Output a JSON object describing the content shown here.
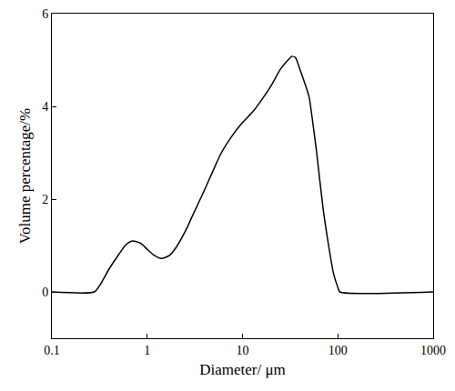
{
  "chart_data": {
    "type": "line",
    "x_label": "Diameter/ μm",
    "y_label": "Volume percentage/%",
    "x": [
      0.1,
      0.28,
      0.32,
      0.4,
      0.5,
      0.6,
      0.7,
      0.85,
      1,
      1.2,
      1.4,
      1.7,
      2,
      2.5,
      3,
      4,
      5,
      6,
      8,
      10,
      13,
      16,
      20,
      25,
      30,
      33,
      36,
      40,
      45,
      50,
      55,
      60,
      70,
      80,
      90,
      100,
      105,
      1000
    ],
    "values": [
      0,
      0,
      0.15,
      0.5,
      0.8,
      1.02,
      1.1,
      1.05,
      0.92,
      0.78,
      0.72,
      0.78,
      0.95,
      1.3,
      1.65,
      2.2,
      2.65,
      3.0,
      3.4,
      3.65,
      3.9,
      4.15,
      4.45,
      4.8,
      5.0,
      5.08,
      5.05,
      4.8,
      4.5,
      4.2,
      3.6,
      3.0,
      1.8,
      1.0,
      0.4,
      0.1,
      0,
      0
    ],
    "color": "#000000",
    "log": "x",
    "xlim": [
      0.1,
      1000
    ],
    "xticks": [
      0.1,
      1,
      10,
      100,
      1000
    ],
    "ylim": [
      -1,
      6
    ],
    "yticks": [
      0,
      2,
      4,
      6
    ],
    "grid": false
  }
}
